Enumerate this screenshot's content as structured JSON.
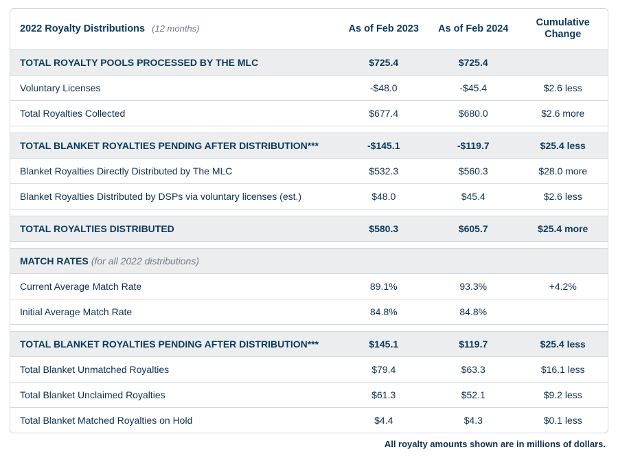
{
  "header": {
    "title": "2022 Royalty Distributions",
    "subtitle": "(12 months)",
    "col2": "As of Feb 2023",
    "col3": "As of Feb 2024",
    "col4": "Cumulative Change"
  },
  "sections": [
    {
      "title": "TOTAL ROYALTY POOLS PROCESSED BY THE MLC",
      "subtitle": "",
      "v2023": "$725.4",
      "v2024": "$725.4",
      "change": "",
      "rows": [
        {
          "label": "Voluntary Licenses",
          "v2023": "-$48.0",
          "v2024": "-$45.4",
          "change": "$2.6 less"
        },
        {
          "label": "Total Royalties Collected",
          "v2023": "$677.4",
          "v2024": "$680.0",
          "change": "$2.6 more"
        }
      ]
    },
    {
      "title": "TOTAL BLANKET ROYALTIES PENDING AFTER DISTRIBUTION***",
      "subtitle": "",
      "v2023": "-$145.1",
      "v2024": "-$119.7",
      "change": "$25.4 less",
      "rows": [
        {
          "label": "Blanket Royalties Directly Distributed by The MLC",
          "v2023": "$532.3",
          "v2024": "$560.3",
          "change": "$28.0 more"
        },
        {
          "label": "Blanket Royalties Distributed by DSPs via voluntary licenses (est.)",
          "v2023": "$48.0",
          "v2024": "$45.4",
          "change": "$2.6 less"
        }
      ]
    },
    {
      "title": "TOTAL ROYALTIES DISTRIBUTED",
      "subtitle": "",
      "v2023": "$580.3",
      "v2024": "$605.7",
      "change": "$25.4 more",
      "rows": []
    },
    {
      "title": "MATCH RATES",
      "subtitle": "(for all 2022 distributions)",
      "v2023": "",
      "v2024": "",
      "change": "",
      "rows": [
        {
          "label": "Current Average Match Rate",
          "v2023": "89.1%",
          "v2024": "93.3%",
          "change": "+4.2%"
        },
        {
          "label": "Initial Average Match Rate",
          "v2023": "84.8%",
          "v2024": "84.8%",
          "change": ""
        }
      ]
    },
    {
      "title": "TOTAL BLANKET ROYALTIES PENDING AFTER DISTRIBUTION***",
      "subtitle": "",
      "v2023": "$145.1",
      "v2024": "$119.7",
      "change": "$25.4 less",
      "rows": [
        {
          "label": "Total Blanket Unmatched Royalties",
          "v2023": "$79.4",
          "v2024": "$63.3",
          "change": "$16.1 less"
        },
        {
          "label": "Total Blanket Unclaimed Royalties",
          "v2023": "$61.3",
          "v2024": "$52.1",
          "change": "$9.2 less"
        },
        {
          "label": "Total Blanket Matched Royalties on Hold",
          "v2023": "$4.4",
          "v2024": "$4.3",
          "change": "$0.1 less"
        }
      ]
    }
  ],
  "footnote": "All royalty amounts shown are in millions of dollars."
}
